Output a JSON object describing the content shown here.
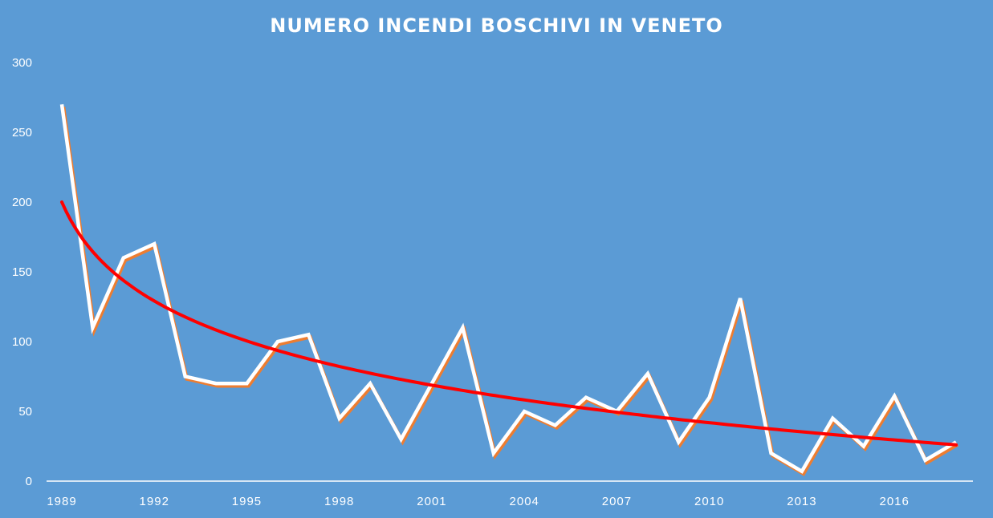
{
  "chart_data": {
    "type": "line",
    "title": "NUMERO INCENDI BOSCHIVI IN VENETO",
    "xlabel": "",
    "ylabel": "",
    "ylim": [
      0,
      300
    ],
    "y_ticks": [
      "0",
      "50",
      "100",
      "150",
      "200",
      "250",
      "300"
    ],
    "x_tick_labels": [
      "1989",
      "1992",
      "1995",
      "1998",
      "2001",
      "2004",
      "2007",
      "2010",
      "2013",
      "2016"
    ],
    "x": [
      1989,
      1990,
      1991,
      1992,
      1993,
      1994,
      1995,
      1996,
      1997,
      1998,
      1999,
      2000,
      2001,
      2002,
      2003,
      2004,
      2005,
      2006,
      2007,
      2008,
      2009,
      2010,
      2011,
      2012,
      2013,
      2014,
      2015,
      2016,
      2017,
      2018
    ],
    "series": [
      {
        "values": [
          270,
          110,
          160,
          170,
          75,
          70,
          70,
          100,
          105,
          45,
          70,
          30,
          70,
          110,
          20,
          50,
          40,
          60,
          50,
          77,
          28,
          60,
          131,
          20,
          7,
          45,
          25,
          61,
          15,
          28
        ],
        "color": "#ffffff",
        "shadow_color": "#ed7d31"
      }
    ],
    "trendline": {
      "type": "logarithmic",
      "color": "#ff0000",
      "start_value": 200,
      "end_value": 26
    },
    "grid": false,
    "legend": "none"
  }
}
